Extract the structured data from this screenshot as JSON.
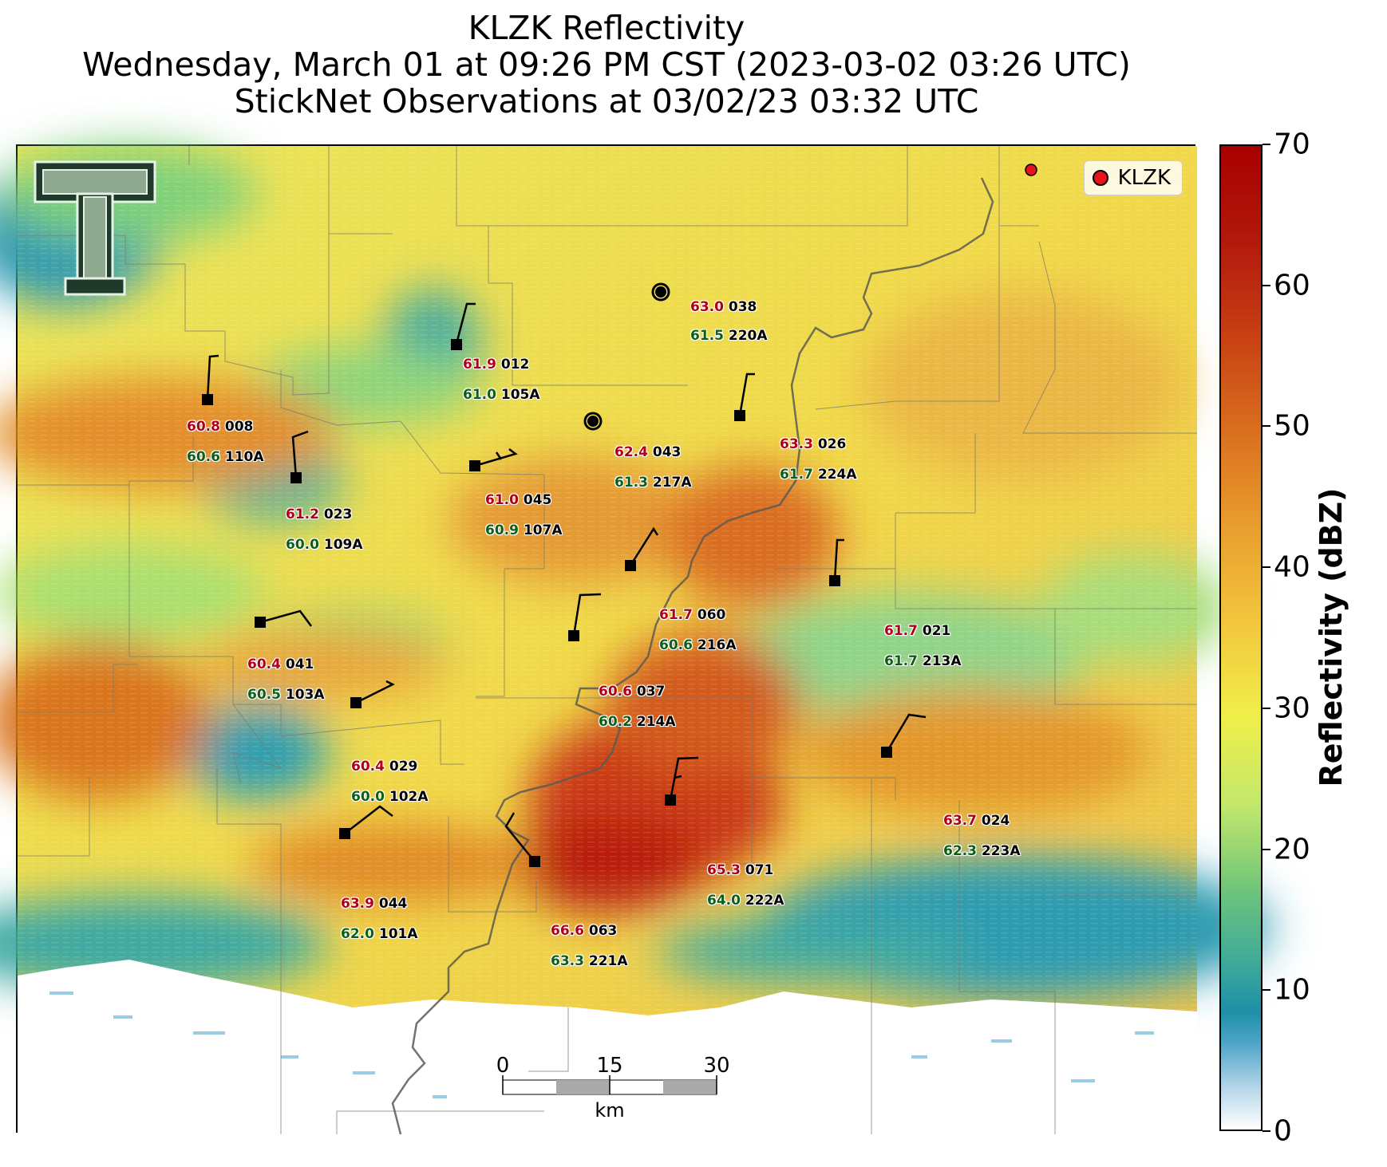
{
  "title": {
    "line1": "KLZK Reflectivity",
    "line2": "Wednesday, March 01 at 09:26 PM CST (2023-03-02 03:26 UTC)",
    "line3": "StickNet Observations at 03/02/23 03:32 UTC"
  },
  "legend": {
    "label": "KLZK",
    "marker_color": "#e8141c"
  },
  "colorbar": {
    "label": "Reflectivity (dBZ)",
    "min": 0,
    "max": 70,
    "ticks": [
      "0",
      "10",
      "20",
      "30",
      "40",
      "50",
      "60",
      "70"
    ]
  },
  "scale_bar": {
    "ticks": [
      "0",
      "15",
      "30"
    ],
    "unit": "km"
  },
  "logo": {
    "name": "texas-tech-double-t-logo"
  },
  "stations": [
    {
      "temp": "63.0",
      "dew": "61.5",
      "id": "220A",
      "speed_label": "038"
    },
    {
      "temp": "61.9",
      "dew": "61.0",
      "id": "105A",
      "speed_label": "012"
    },
    {
      "temp": "60.8",
      "dew": "60.6",
      "id": "110A",
      "speed_label": "008"
    },
    {
      "temp": "62.4",
      "dew": "61.3",
      "id": "217A",
      "speed_label": "043"
    },
    {
      "temp": "63.3",
      "dew": "61.7",
      "id": "224A",
      "speed_label": "026"
    },
    {
      "temp": "61.2",
      "dew": "60.0",
      "id": "109A",
      "speed_label": "023"
    },
    {
      "temp": "61.0",
      "dew": "60.9",
      "id": "107A",
      "speed_label": "045"
    },
    {
      "temp": "61.7",
      "dew": "60.6",
      "id": "216A",
      "speed_label": "060"
    },
    {
      "temp": "61.7",
      "dew": "61.7",
      "id": "213A",
      "speed_label": "021"
    },
    {
      "temp": "60.4",
      "dew": "60.5",
      "id": "103A",
      "speed_label": "041"
    },
    {
      "temp": "60.6",
      "dew": "60.2",
      "id": "214A",
      "speed_label": "037"
    },
    {
      "temp": "60.4",
      "dew": "60.0",
      "id": "102A",
      "speed_label": "029"
    },
    {
      "temp": "63.7",
      "dew": "62.3",
      "id": "223A",
      "speed_label": "024"
    },
    {
      "temp": "65.3",
      "dew": "64.0",
      "id": "222A",
      "speed_label": "071"
    },
    {
      "temp": "63.9",
      "dew": "62.0",
      "id": "101A",
      "speed_label": "044"
    },
    {
      "temp": "66.6",
      "dew": "63.3",
      "id": "221A",
      "speed_label": "063"
    }
  ]
}
